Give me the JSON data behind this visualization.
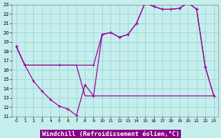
{
  "xlabel": "Windchill (Refroidissement éolien,°C)",
  "bg_color": "#c5eeed",
  "grid_color": "#9fd8d8",
  "line_color": "#990099",
  "xlim": [
    -0.5,
    23.5
  ],
  "ylim": [
    11,
    23
  ],
  "yticks": [
    11,
    12,
    13,
    14,
    15,
    16,
    17,
    18,
    19,
    20,
    21,
    22,
    23
  ],
  "xticks": [
    0,
    1,
    2,
    3,
    4,
    5,
    6,
    7,
    8,
    9,
    10,
    11,
    12,
    13,
    14,
    15,
    16,
    17,
    18,
    19,
    20,
    21,
    22,
    23
  ],
  "line_main_x": [
    0,
    1,
    2,
    3,
    4,
    5,
    6,
    7,
    8,
    9,
    10,
    11,
    12,
    13,
    14,
    15,
    16,
    17,
    18,
    19,
    20,
    21,
    22,
    23
  ],
  "line_main_y": [
    18.5,
    16.5,
    14.8,
    13.7,
    12.8,
    12.1,
    11.8,
    11.1,
    14.4,
    13.2,
    19.8,
    20.0,
    19.5,
    19.8,
    21.0,
    23.2,
    22.8,
    22.5,
    22.5,
    22.6,
    23.2,
    22.5,
    16.3,
    13.2
  ],
  "line_trend_x": [
    0,
    1,
    5,
    9,
    10,
    11,
    12,
    13,
    14,
    15,
    16,
    17,
    18,
    19,
    20,
    21,
    22,
    23
  ],
  "line_trend_y": [
    18.5,
    16.5,
    16.5,
    16.5,
    19.8,
    20.0,
    19.5,
    19.8,
    21.0,
    23.2,
    22.8,
    22.5,
    22.5,
    22.6,
    23.2,
    22.5,
    16.3,
    13.2
  ],
  "line_env_x": [
    0,
    1,
    2,
    3,
    4,
    5,
    6,
    7,
    8,
    9,
    10,
    11,
    12,
    13,
    14,
    15,
    16,
    17,
    18,
    19,
    20,
    21,
    22,
    23
  ],
  "line_env_y": [
    18.5,
    16.5,
    16.5,
    16.5,
    16.5,
    16.5,
    16.5,
    16.5,
    13.2,
    13.2,
    13.2,
    13.2,
    13.2,
    13.2,
    13.2,
    13.2,
    13.2,
    13.2,
    13.2,
    13.2,
    13.2,
    13.2,
    13.2,
    13.2
  ],
  "xlabel_bg": "#880088",
  "xlabel_fg": "#ffffff",
  "xlabel_fontsize": 6.5
}
